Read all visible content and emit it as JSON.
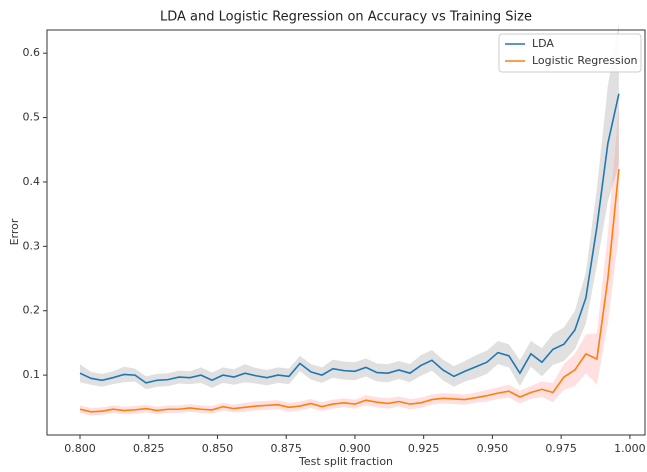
{
  "chart_data": {
    "type": "line",
    "title": "LDA and Logistic Regression on Accuracy vs Training Size",
    "xlabel": "Test split fraction",
    "ylabel": "Error",
    "x": [
      0.8,
      0.804,
      0.808,
      0.812,
      0.816,
      0.82,
      0.824,
      0.828,
      0.832,
      0.836,
      0.84,
      0.844,
      0.848,
      0.852,
      0.856,
      0.86,
      0.864,
      0.868,
      0.872,
      0.876,
      0.88,
      0.884,
      0.888,
      0.892,
      0.896,
      0.9,
      0.904,
      0.908,
      0.912,
      0.916,
      0.92,
      0.924,
      0.928,
      0.932,
      0.936,
      0.94,
      0.944,
      0.948,
      0.952,
      0.956,
      0.96,
      0.964,
      0.968,
      0.972,
      0.976,
      0.98,
      0.984,
      0.988,
      0.992,
      0.996
    ],
    "series": [
      {
        "name": "LDA",
        "color": "#1f77b4",
        "band_color": "#999999",
        "values": [
          0.103,
          0.095,
          0.092,
          0.096,
          0.101,
          0.1,
          0.088,
          0.092,
          0.093,
          0.097,
          0.096,
          0.1,
          0.092,
          0.1,
          0.097,
          0.103,
          0.099,
          0.096,
          0.1,
          0.098,
          0.118,
          0.105,
          0.1,
          0.11,
          0.107,
          0.106,
          0.112,
          0.104,
          0.103,
          0.108,
          0.103,
          0.115,
          0.123,
          0.108,
          0.098,
          0.106,
          0.113,
          0.12,
          0.135,
          0.13,
          0.103,
          0.133,
          0.12,
          0.14,
          0.148,
          0.17,
          0.22,
          0.33,
          0.46,
          0.537
        ],
        "error": [
          0.014,
          0.01,
          0.01,
          0.01,
          0.012,
          0.01,
          0.01,
          0.01,
          0.01,
          0.01,
          0.01,
          0.012,
          0.012,
          0.012,
          0.012,
          0.014,
          0.012,
          0.012,
          0.012,
          0.012,
          0.012,
          0.012,
          0.012,
          0.014,
          0.014,
          0.014,
          0.014,
          0.014,
          0.014,
          0.014,
          0.014,
          0.016,
          0.016,
          0.016,
          0.016,
          0.016,
          0.018,
          0.018,
          0.018,
          0.018,
          0.02,
          0.02,
          0.022,
          0.024,
          0.026,
          0.03,
          0.04,
          0.06,
          0.09,
          0.11
        ]
      },
      {
        "name": "Logistic Regression",
        "color": "#ff7f0e",
        "band_color": "#ff9999",
        "values": [
          0.047,
          0.043,
          0.044,
          0.047,
          0.045,
          0.046,
          0.048,
          0.045,
          0.047,
          0.047,
          0.049,
          0.047,
          0.046,
          0.051,
          0.048,
          0.05,
          0.052,
          0.053,
          0.054,
          0.05,
          0.052,
          0.056,
          0.051,
          0.055,
          0.057,
          0.055,
          0.061,
          0.058,
          0.056,
          0.059,
          0.055,
          0.057,
          0.062,
          0.064,
          0.063,
          0.062,
          0.065,
          0.068,
          0.072,
          0.075,
          0.066,
          0.073,
          0.078,
          0.073,
          0.097,
          0.108,
          0.133,
          0.125,
          0.25,
          0.42
        ],
        "error": [
          0.006,
          0.006,
          0.006,
          0.006,
          0.006,
          0.006,
          0.006,
          0.006,
          0.006,
          0.006,
          0.006,
          0.006,
          0.006,
          0.006,
          0.006,
          0.007,
          0.007,
          0.007,
          0.007,
          0.007,
          0.007,
          0.007,
          0.007,
          0.007,
          0.007,
          0.007,
          0.008,
          0.008,
          0.008,
          0.008,
          0.008,
          0.008,
          0.008,
          0.008,
          0.008,
          0.008,
          0.008,
          0.009,
          0.009,
          0.01,
          0.01,
          0.01,
          0.012,
          0.015,
          0.02,
          0.025,
          0.03,
          0.04,
          0.07,
          0.1
        ]
      }
    ],
    "xlim": [
      0.788,
      1.0055
    ],
    "ylim": [
      0.007,
      0.636
    ],
    "xticks": [
      {
        "value": 0.8,
        "label": "0.800"
      },
      {
        "value": 0.825,
        "label": "0.825"
      },
      {
        "value": 0.85,
        "label": "0.850"
      },
      {
        "value": 0.875,
        "label": "0.875"
      },
      {
        "value": 0.9,
        "label": "0.900"
      },
      {
        "value": 0.925,
        "label": "0.925"
      },
      {
        "value": 0.95,
        "label": "0.950"
      },
      {
        "value": 0.975,
        "label": "0.975"
      },
      {
        "value": 1.0,
        "label": "1.000"
      }
    ],
    "yticks": [
      0.1,
      0.2,
      0.3,
      0.4,
      0.5,
      0.6
    ],
    "legend": "upper right",
    "grid": false
  }
}
